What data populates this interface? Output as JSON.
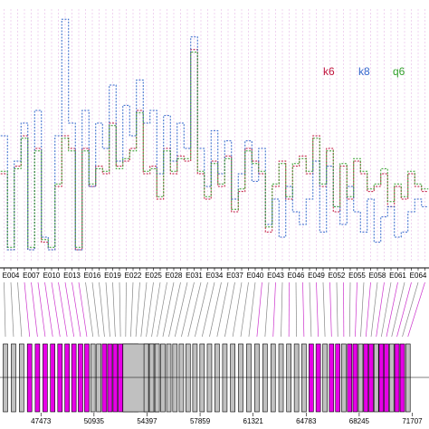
{
  "chart_data": {
    "type": "step",
    "categories": [
      null,
      "E004",
      null,
      null,
      "E007",
      null,
      null,
      "E010",
      null,
      null,
      "E013",
      null,
      null,
      "E016",
      null,
      null,
      "E019",
      null,
      null,
      "E022",
      null,
      null,
      "E025",
      null,
      null,
      "E028",
      null,
      null,
      "E031",
      null,
      null,
      "E034",
      null,
      null,
      "E037",
      null,
      null,
      "E040",
      null,
      null,
      "E043",
      null,
      null,
      "E046",
      null,
      null,
      "E049",
      null,
      null,
      "E052",
      null,
      null,
      "E055",
      null,
      null,
      "E058",
      null,
      null,
      "E061",
      null,
      null,
      "E064",
      null
    ],
    "series": [
      {
        "name": "k6",
        "color": "#c0143c",
        "values": [
          35,
          5,
          38,
          50,
          5,
          45,
          8,
          5,
          30,
          50,
          45,
          5,
          45,
          30,
          38,
          35,
          55,
          38,
          40,
          45,
          60,
          35,
          38,
          25,
          45,
          35,
          42,
          40,
          84,
          35,
          25,
          40,
          30,
          42,
          20,
          28,
          45,
          40,
          35,
          12,
          30,
          40,
          25,
          38,
          42,
          35,
          50,
          30,
          45,
          20,
          38,
          25,
          40,
          35,
          28,
          30,
          35,
          22,
          30,
          25,
          35,
          30,
          28
        ]
      },
      {
        "name": "k8",
        "color": "#3366cc",
        "values": [
          50,
          5,
          40,
          55,
          5,
          60,
          10,
          5,
          50,
          96,
          55,
          5,
          60,
          30,
          55,
          45,
          70,
          40,
          62,
          50,
          72,
          55,
          60,
          35,
          58,
          40,
          55,
          45,
          89,
          45,
          30,
          52,
          35,
          48,
          25,
          35,
          48,
          32,
          45,
          15,
          25,
          10,
          30,
          20,
          15,
          25,
          40,
          12,
          38,
          22,
          15,
          30,
          20,
          12,
          25,
          8,
          18,
          22,
          10,
          12,
          20,
          25,
          22
        ]
      },
      {
        "name": "q6",
        "color": "#33a02c",
        "values": [
          36,
          6,
          37,
          49,
          6,
          44,
          9,
          6,
          31,
          49,
          44,
          6,
          44,
          31,
          37,
          36,
          54,
          37,
          41,
          44,
          59,
          36,
          37,
          26,
          44,
          36,
          41,
          41,
          83,
          36,
          26,
          39,
          31,
          41,
          21,
          29,
          44,
          39,
          36,
          14,
          31,
          39,
          26,
          39,
          41,
          36,
          49,
          31,
          44,
          22,
          39,
          26,
          41,
          36,
          29,
          31,
          37,
          24,
          31,
          26,
          36,
          31,
          29
        ]
      }
    ],
    "ylim": [
      0,
      100
    ],
    "genome_axis": {
      "xlim": [
        44800,
        72800
      ],
      "ticks": [
        47473,
        50935,
        54397,
        57859,
        61321,
        64783,
        68245,
        71707
      ]
    }
  }
}
